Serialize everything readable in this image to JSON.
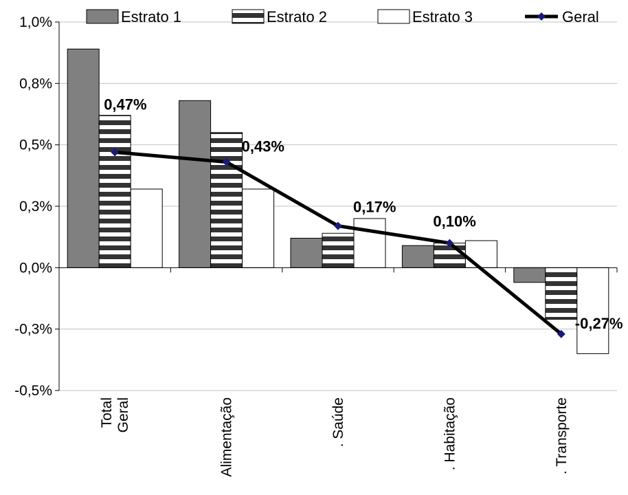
{
  "chart_data": {
    "type": "bar",
    "title": "",
    "xlabel": "",
    "ylabel": "",
    "ylim": [
      -0.5,
      1.0
    ],
    "yticks": [
      1.0,
      0.75,
      0.5,
      0.25,
      0.0,
      -0.25,
      -0.5
    ],
    "ytick_labels": [
      "1,0%",
      "0,8%",
      "0,5%",
      "0,3%",
      "0,0%",
      "-0,3%",
      "-0,5%"
    ],
    "grid": "horizontal",
    "legend": "top",
    "categories": [
      [
        "Total",
        "Geral"
      ],
      [
        "Alimentação"
      ],
      [
        ". Saúde"
      ],
      [
        ". Habitação"
      ],
      [
        ". Transporte"
      ]
    ],
    "series": [
      {
        "name": "Estrato 1",
        "kind": "bar",
        "pattern": "solid-gray",
        "values": [
          0.89,
          0.68,
          0.12,
          0.09,
          -0.06
        ]
      },
      {
        "name": "Estrato 2",
        "kind": "bar",
        "pattern": "horizontal-stripes",
        "values": [
          0.62,
          0.55,
          0.14,
          0.1,
          -0.21
        ]
      },
      {
        "name": "Estrato 3",
        "kind": "bar",
        "pattern": "white",
        "values": [
          0.32,
          0.32,
          0.2,
          0.11,
          -0.35
        ]
      },
      {
        "name": "Geral",
        "kind": "line",
        "values": [
          0.47,
          0.43,
          0.17,
          0.1,
          -0.27
        ],
        "labels": [
          "0,47%",
          "0,43%",
          "0,17%",
          "0,10%",
          "-0,27%"
        ]
      }
    ],
    "colors": {
      "estrato1": "#808080",
      "estrato2_stripe": "#333333",
      "estrato3": "#ffffff",
      "geral_line": "#000000",
      "geral_marker": "#1a1a7a",
      "grid": "#c0c0c0"
    }
  }
}
